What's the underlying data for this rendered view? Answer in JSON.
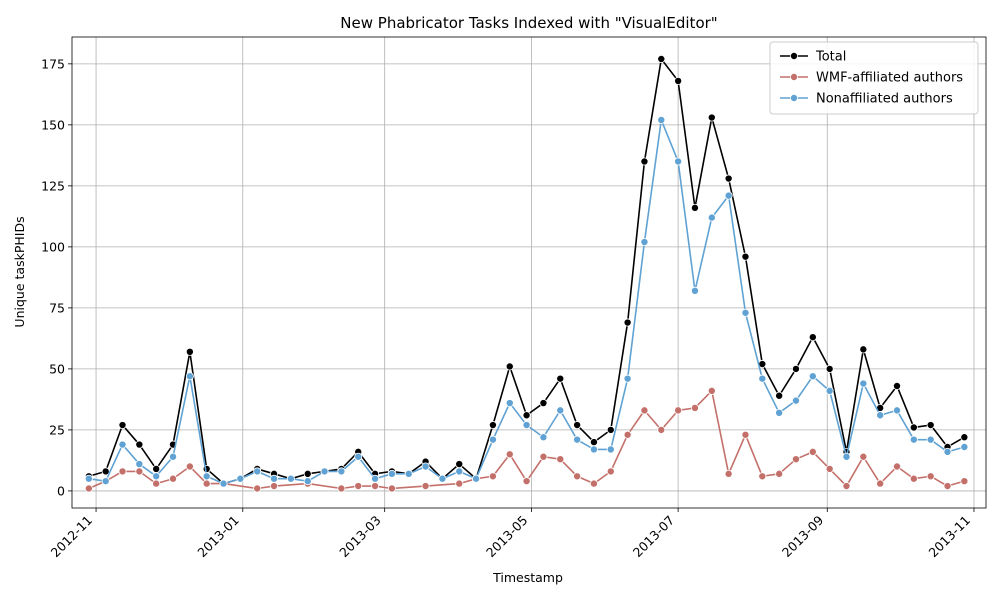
{
  "chart_data": {
    "type": "line",
    "title": "New Phabricator Tasks Indexed with \"VisualEditor\"",
    "xlabel": "Timestamp",
    "ylabel": "Unique taskPHIDs",
    "ylim": [
      -7,
      186
    ],
    "xlim": [
      "2012-10-22",
      "2013-11-06"
    ],
    "grid": true,
    "legend_position": "top-right",
    "y_ticks": [
      0,
      25,
      50,
      75,
      100,
      125,
      150,
      175
    ],
    "x_ticks": [
      "2012-11-01",
      "2013-01-01",
      "2013-03-01",
      "2013-05-01",
      "2013-07-01",
      "2013-09-01",
      "2013-11-01"
    ],
    "x_tick_labels": [
      "2012-11",
      "2013-01",
      "2013-03",
      "2013-05",
      "2013-07",
      "2013-09",
      "2013-11"
    ],
    "series": [
      {
        "name": "Total",
        "color": "#000000",
        "points": [
          [
            "2012-10-29",
            6
          ],
          [
            "2012-11-05",
            8
          ],
          [
            "2012-11-12",
            27
          ],
          [
            "2012-11-19",
            19
          ],
          [
            "2012-11-26",
            9
          ],
          [
            "2012-12-03",
            19
          ],
          [
            "2012-12-10",
            57
          ],
          [
            "2012-12-17",
            9
          ],
          [
            "2012-12-24",
            3
          ],
          [
            "2012-12-31",
            5
          ],
          [
            "2013-01-07",
            9
          ],
          [
            "2013-01-14",
            7
          ],
          [
            "2013-01-21",
            5
          ],
          [
            "2013-01-28",
            7
          ],
          [
            "2013-02-04",
            8
          ],
          [
            "2013-02-11",
            9
          ],
          [
            "2013-02-18",
            16
          ],
          [
            "2013-02-25",
            7
          ],
          [
            "2013-03-04",
            8
          ],
          [
            "2013-03-11",
            7
          ],
          [
            "2013-03-18",
            12
          ],
          [
            "2013-03-25",
            5
          ],
          [
            "2013-04-01",
            11
          ],
          [
            "2013-04-08",
            5
          ],
          [
            "2013-04-15",
            27
          ],
          [
            "2013-04-22",
            51
          ],
          [
            "2013-04-29",
            31
          ],
          [
            "2013-05-06",
            36
          ],
          [
            "2013-05-13",
            46
          ],
          [
            "2013-05-20",
            27
          ],
          [
            "2013-05-27",
            20
          ],
          [
            "2013-06-03",
            25
          ],
          [
            "2013-06-10",
            69
          ],
          [
            "2013-06-17",
            135
          ],
          [
            "2013-06-24",
            177
          ],
          [
            "2013-07-01",
            168
          ],
          [
            "2013-07-08",
            116
          ],
          [
            "2013-07-15",
            153
          ],
          [
            "2013-07-22",
            128
          ],
          [
            "2013-07-29",
            96
          ],
          [
            "2013-08-05",
            52
          ],
          [
            "2013-08-12",
            39
          ],
          [
            "2013-08-19",
            50
          ],
          [
            "2013-08-26",
            63
          ],
          [
            "2013-09-02",
            50
          ],
          [
            "2013-09-09",
            16
          ],
          [
            "2013-09-16",
            58
          ],
          [
            "2013-09-23",
            34
          ],
          [
            "2013-09-30",
            43
          ],
          [
            "2013-10-07",
            26
          ],
          [
            "2013-10-14",
            27
          ],
          [
            "2013-10-21",
            18
          ],
          [
            "2013-10-28",
            22
          ]
        ]
      },
      {
        "name": "WMF-affiliated authors",
        "color": "#c4706a",
        "points": [
          [
            "2012-10-29",
            1
          ],
          [
            "2012-11-05",
            4
          ],
          [
            "2012-11-12",
            8
          ],
          [
            "2012-11-19",
            8
          ],
          [
            "2012-11-26",
            3
          ],
          [
            "2012-12-03",
            5
          ],
          [
            "2012-12-10",
            10
          ],
          [
            "2012-12-17",
            3
          ],
          [
            "2012-12-24",
            3
          ],
          [
            "2013-01-07",
            1
          ],
          [
            "2013-01-14",
            2
          ],
          [
            "2013-01-28",
            3
          ],
          [
            "2013-02-11",
            1
          ],
          [
            "2013-02-18",
            2
          ],
          [
            "2013-02-25",
            2
          ],
          [
            "2013-03-04",
            1
          ],
          [
            "2013-03-18",
            2
          ],
          [
            "2013-04-01",
            3
          ],
          [
            "2013-04-08",
            5
          ],
          [
            "2013-04-15",
            6
          ],
          [
            "2013-04-22",
            15
          ],
          [
            "2013-04-29",
            4
          ],
          [
            "2013-05-06",
            14
          ],
          [
            "2013-05-13",
            13
          ],
          [
            "2013-05-20",
            6
          ],
          [
            "2013-05-27",
            3
          ],
          [
            "2013-06-03",
            8
          ],
          [
            "2013-06-10",
            23
          ],
          [
            "2013-06-17",
            33
          ],
          [
            "2013-06-24",
            25
          ],
          [
            "2013-07-01",
            33
          ],
          [
            "2013-07-08",
            34
          ],
          [
            "2013-07-15",
            41
          ],
          [
            "2013-07-22",
            7
          ],
          [
            "2013-07-29",
            23
          ],
          [
            "2013-08-05",
            6
          ],
          [
            "2013-08-12",
            7
          ],
          [
            "2013-08-19",
            13
          ],
          [
            "2013-08-26",
            16
          ],
          [
            "2013-09-02",
            9
          ],
          [
            "2013-09-09",
            2
          ],
          [
            "2013-09-16",
            14
          ],
          [
            "2013-09-23",
            3
          ],
          [
            "2013-09-30",
            10
          ],
          [
            "2013-10-07",
            5
          ],
          [
            "2013-10-14",
            6
          ],
          [
            "2013-10-21",
            2
          ],
          [
            "2013-10-28",
            4
          ]
        ]
      },
      {
        "name": "Nonaffiliated authors",
        "color": "#5fa2d3",
        "points": [
          [
            "2012-10-29",
            5
          ],
          [
            "2012-11-05",
            4
          ],
          [
            "2012-11-12",
            19
          ],
          [
            "2012-11-19",
            11
          ],
          [
            "2012-11-26",
            6
          ],
          [
            "2012-12-03",
            14
          ],
          [
            "2012-12-10",
            47
          ],
          [
            "2012-12-17",
            6
          ],
          [
            "2012-12-24",
            3
          ],
          [
            "2012-12-31",
            5
          ],
          [
            "2013-01-07",
            8
          ],
          [
            "2013-01-14",
            5
          ],
          [
            "2013-01-21",
            5
          ],
          [
            "2013-01-28",
            4
          ],
          [
            "2013-02-04",
            8
          ],
          [
            "2013-02-11",
            8
          ],
          [
            "2013-02-18",
            14
          ],
          [
            "2013-02-25",
            5
          ],
          [
            "2013-03-04",
            7
          ],
          [
            "2013-03-11",
            7
          ],
          [
            "2013-03-18",
            10
          ],
          [
            "2013-03-25",
            5
          ],
          [
            "2013-04-01",
            8
          ],
          [
            "2013-04-08",
            5
          ],
          [
            "2013-04-15",
            21
          ],
          [
            "2013-04-22",
            36
          ],
          [
            "2013-04-29",
            27
          ],
          [
            "2013-05-06",
            22
          ],
          [
            "2013-05-13",
            33
          ],
          [
            "2013-05-20",
            21
          ],
          [
            "2013-05-27",
            17
          ],
          [
            "2013-06-03",
            17
          ],
          [
            "2013-06-10",
            46
          ],
          [
            "2013-06-17",
            102
          ],
          [
            "2013-06-24",
            152
          ],
          [
            "2013-07-01",
            135
          ],
          [
            "2013-07-08",
            82
          ],
          [
            "2013-07-15",
            112
          ],
          [
            "2013-07-22",
            121
          ],
          [
            "2013-07-29",
            73
          ],
          [
            "2013-08-05",
            46
          ],
          [
            "2013-08-12",
            32
          ],
          [
            "2013-08-19",
            37
          ],
          [
            "2013-08-26",
            47
          ],
          [
            "2013-09-02",
            41
          ],
          [
            "2013-09-09",
            14
          ],
          [
            "2013-09-16",
            44
          ],
          [
            "2013-09-23",
            31
          ],
          [
            "2013-09-30",
            33
          ],
          [
            "2013-10-07",
            21
          ],
          [
            "2013-10-14",
            21
          ],
          [
            "2013-10-21",
            16
          ],
          [
            "2013-10-28",
            18
          ]
        ]
      }
    ]
  }
}
